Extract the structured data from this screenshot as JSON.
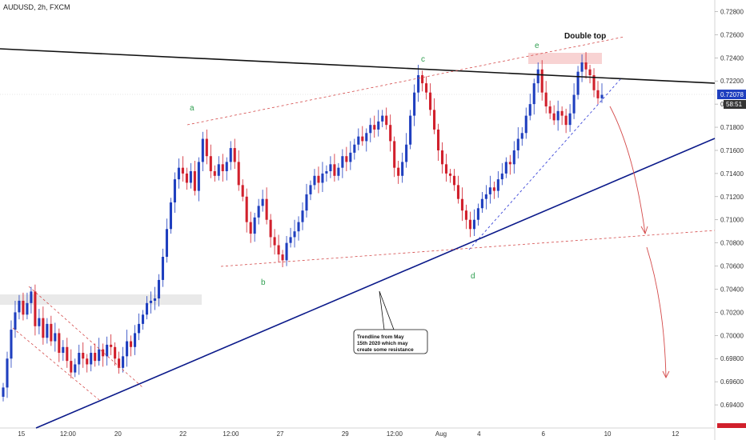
{
  "chart_data": {
    "type": "candlestick",
    "title": "AUDUSD, 2h, FXCM",
    "ylim": [
      0.692,
      0.729
    ],
    "y_ticks": [
      "0.72800",
      "0.72600",
      "0.72400",
      "0.72200",
      "0.72000",
      "0.71800",
      "0.71600",
      "0.71400",
      "0.71200",
      "0.71000",
      "0.70800",
      "0.70600",
      "0.70400",
      "0.70200",
      "0.70000",
      "0.69800",
      "0.69600",
      "0.69400"
    ],
    "x_ticks": [
      {
        "label": "15",
        "t": 0.03
      },
      {
        "label": "12:00",
        "t": 0.095
      },
      {
        "label": "20",
        "t": 0.165
      },
      {
        "label": "22",
        "t": 0.256
      },
      {
        "label": "12:00",
        "t": 0.323
      },
      {
        "label": "27",
        "t": 0.392
      },
      {
        "label": "29",
        "t": 0.483
      },
      {
        "label": "12:00",
        "t": 0.552
      },
      {
        "label": "Aug",
        "t": 0.617
      },
      {
        "label": "4",
        "t": 0.67
      },
      {
        "label": "6",
        "t": 0.76
      },
      {
        "label": "10",
        "t": 0.85
      },
      {
        "label": "12",
        "t": 0.945
      }
    ],
    "last_price": "0.72078",
    "countdown": "58:51",
    "prices": [
      0.6955,
      0.698,
      0.7005,
      0.702,
      0.703,
      0.7018,
      0.7028,
      0.7038,
      0.7008,
      0.7015,
      0.6998,
      0.701,
      0.6995,
      0.7002,
      0.6985,
      0.699,
      0.6978,
      0.6968,
      0.6975,
      0.6985,
      0.698,
      0.6975,
      0.6985,
      0.6978,
      0.6988,
      0.6982,
      0.6992,
      0.699,
      0.698,
      0.6972,
      0.6982,
      0.6995,
      0.699,
      0.7002,
      0.701,
      0.7018,
      0.7028,
      0.703,
      0.7032,
      0.7048,
      0.7068,
      0.7092,
      0.7115,
      0.7135,
      0.7145,
      0.714,
      0.7132,
      0.7142,
      0.7125,
      0.715,
      0.717,
      0.7155,
      0.7142,
      0.7138,
      0.7148,
      0.7142,
      0.715,
      0.7162,
      0.715,
      0.713,
      0.712,
      0.7098,
      0.7088,
      0.7102,
      0.7112,
      0.7118,
      0.71,
      0.7085,
      0.7078,
      0.707,
      0.7065,
      0.708,
      0.7085,
      0.709,
      0.7098,
      0.7108,
      0.7122,
      0.713,
      0.7138,
      0.7132,
      0.714,
      0.7142,
      0.7148,
      0.7138,
      0.7145,
      0.7155,
      0.715,
      0.7158,
      0.7165,
      0.7172,
      0.7168,
      0.7175,
      0.7182,
      0.7178,
      0.7185,
      0.719,
      0.7182,
      0.7168,
      0.7145,
      0.7138,
      0.715,
      0.7165,
      0.719,
      0.721,
      0.7225,
      0.7218,
      0.721,
      0.7195,
      0.7178,
      0.716,
      0.7148,
      0.714,
      0.7138,
      0.713,
      0.7118,
      0.7108,
      0.71,
      0.7092,
      0.71,
      0.711,
      0.7118,
      0.7122,
      0.7128,
      0.7125,
      0.7135,
      0.714,
      0.715,
      0.7148,
      0.716,
      0.717,
      0.7175,
      0.719,
      0.72,
      0.7218,
      0.723,
      0.721,
      0.7198,
      0.7192,
      0.7186,
      0.7194,
      0.719,
      0.7182,
      0.7192,
      0.7208,
      0.7228,
      0.7236,
      0.723,
      0.7225,
      0.7212,
      0.7205,
      0.7208
    ],
    "series": [],
    "annotations": [
      {
        "text": "a",
        "color": "#2e9e4f"
      },
      {
        "text": "b",
        "color": "#2e9e4f"
      },
      {
        "text": "c",
        "color": "#2e9e4f"
      },
      {
        "text": "d",
        "color": "#2e9e4f"
      },
      {
        "text": "e",
        "color": "#2e9e4f"
      },
      {
        "text": "Double top",
        "color": "#111111"
      }
    ],
    "callout": [
      "Trendline from May",
      "15th 2020 which may",
      "create some resistance"
    ],
    "colors": {
      "up": "#1f3fbf",
      "down": "#d1202c",
      "trend": "#0b1a8a",
      "resistance": "#111111",
      "channel": "#d44a4a",
      "channel2": "#3a45d8",
      "zone": "#e8e8e8",
      "double_top_zone": "#f7d4d4"
    }
  }
}
